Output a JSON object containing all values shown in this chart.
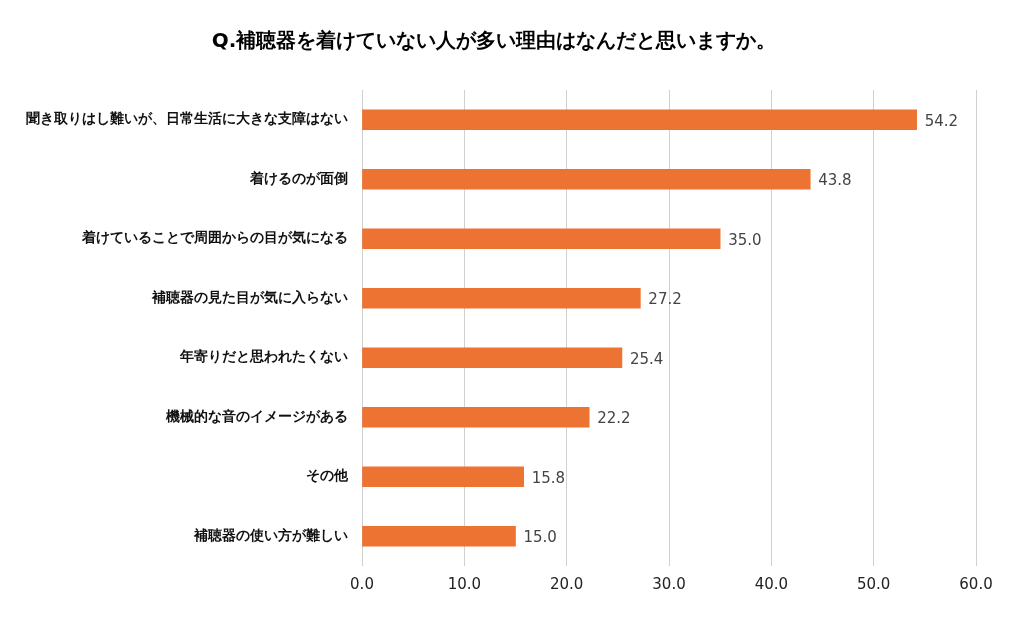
{
  "chart_data": {
    "type": "bar",
    "orientation": "horizontal",
    "title": "Q.補聴器を着けていない人が多い理由はなんだと思いますか。",
    "categories": [
      "聞き取りはし難いが、日常生活に大きな支障はない",
      "着けるのが面倒",
      "着けていることで周囲からの目が気になる",
      "補聴器の見た目が気に入らない",
      "年寄りだと思われたくない",
      "機械的な音のイメージがある",
      "その他",
      "補聴器の使い方が難しい"
    ],
    "values": [
      54.2,
      43.8,
      35.0,
      27.2,
      25.4,
      22.2,
      15.8,
      15.0
    ],
    "color": "#ed7332",
    "xlim": [
      0,
      60
    ],
    "xticks": [
      {
        "value": 0,
        "label": "0.0"
      },
      {
        "value": 10,
        "label": "10.0"
      },
      {
        "value": 20,
        "label": "20.0"
      },
      {
        "value": 30,
        "label": "30.0"
      },
      {
        "value": 40,
        "label": "40.0"
      },
      {
        "value": 50,
        "label": "50.0"
      },
      {
        "value": 60,
        "label": "60.0"
      }
    ],
    "value_labels": [
      "54.2",
      "43.8",
      "35.0",
      "27.2",
      "25.4",
      "22.2",
      "15.8",
      "15.0"
    ],
    "grid": "x",
    "legend": false
  }
}
